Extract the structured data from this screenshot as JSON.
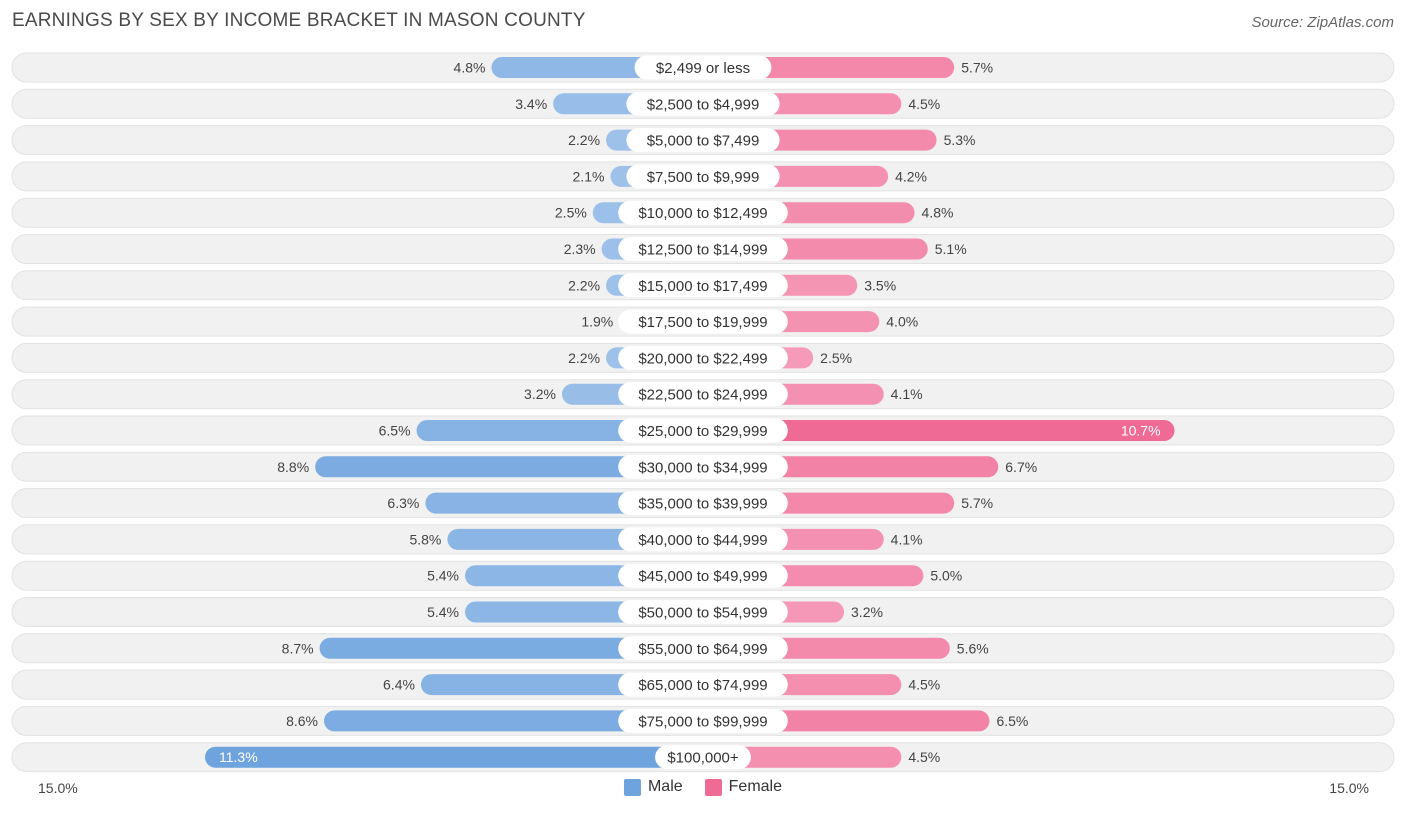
{
  "header": {
    "title": "EARNINGS BY SEX BY INCOME BRACKET IN MASON COUNTY",
    "source": "Source: ZipAtlas.com"
  },
  "axis": {
    "left_label": "15.0%",
    "right_label": "15.0%"
  },
  "legend": {
    "male_label": "Male",
    "female_label": "Female"
  },
  "colors": {
    "male_light": "#a8c8ec",
    "male_dark": "#6ea3de",
    "female_light": "#f7aac4",
    "female_dark": "#ef6a94",
    "row_bg": "#f1f1f1"
  },
  "chart_data": {
    "type": "bar",
    "orientation": "horizontal-diverging",
    "title": "EARNINGS BY SEX BY INCOME BRACKET IN MASON COUNTY",
    "xlim": [
      -15.0,
      15.0
    ],
    "unit": "%",
    "categories": [
      "$2,499 or less",
      "$2,500 to $4,999",
      "$5,000 to $7,499",
      "$7,500 to $9,999",
      "$10,000 to $12,499",
      "$12,500 to $14,999",
      "$15,000 to $17,499",
      "$17,500 to $19,999",
      "$20,000 to $22,499",
      "$22,500 to $24,999",
      "$25,000 to $29,999",
      "$30,000 to $34,999",
      "$35,000 to $39,999",
      "$40,000 to $44,999",
      "$45,000 to $49,999",
      "$50,000 to $54,999",
      "$55,000 to $64,999",
      "$65,000 to $74,999",
      "$75,000 to $99,999",
      "$100,000+"
    ],
    "series": [
      {
        "name": "Male",
        "values": [
          4.8,
          3.4,
          2.2,
          2.1,
          2.5,
          2.3,
          2.2,
          1.9,
          2.2,
          3.2,
          6.5,
          8.8,
          6.3,
          5.8,
          5.4,
          5.4,
          8.7,
          6.4,
          8.6,
          11.3
        ],
        "labels": [
          "4.8%",
          "3.4%",
          "2.2%",
          "2.1%",
          "2.5%",
          "2.3%",
          "2.2%",
          "1.9%",
          "2.2%",
          "3.2%",
          "6.5%",
          "8.8%",
          "6.3%",
          "5.8%",
          "5.4%",
          "5.4%",
          "8.7%",
          "6.4%",
          "8.6%",
          "11.3%"
        ]
      },
      {
        "name": "Female",
        "values": [
          5.7,
          4.5,
          5.3,
          4.2,
          4.8,
          5.1,
          3.5,
          4.0,
          2.5,
          4.1,
          10.7,
          6.7,
          5.7,
          4.1,
          5.0,
          3.2,
          5.6,
          4.5,
          6.5,
          4.5
        ],
        "labels": [
          "5.7%",
          "4.5%",
          "5.3%",
          "4.2%",
          "4.8%",
          "5.1%",
          "3.5%",
          "4.0%",
          "2.5%",
          "4.1%",
          "10.7%",
          "6.7%",
          "5.7%",
          "4.1%",
          "5.0%",
          "3.2%",
          "5.6%",
          "4.5%",
          "6.5%",
          "4.5%"
        ]
      }
    ]
  }
}
